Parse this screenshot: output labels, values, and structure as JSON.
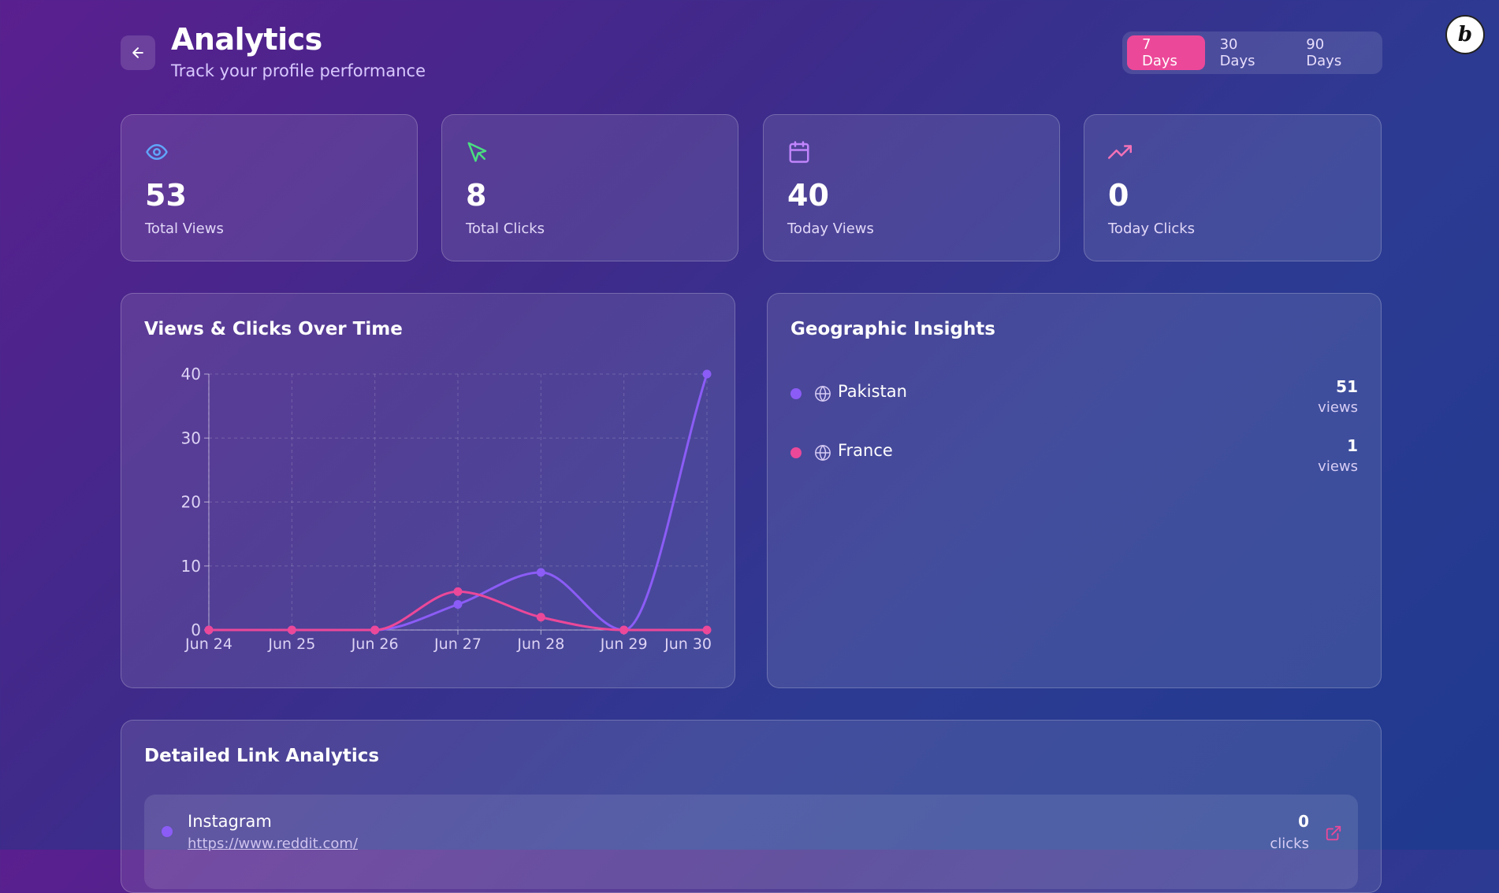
{
  "header": {
    "title": "Analytics",
    "subtitle": "Track your profile performance",
    "ranges": [
      {
        "label": "7 Days",
        "active": true
      },
      {
        "label": "30 Days",
        "active": false
      },
      {
        "label": "90 Days",
        "active": false
      }
    ],
    "badge_letter": "b"
  },
  "stats": [
    {
      "icon": "eye-icon",
      "value": "53",
      "label": "Total Views",
      "color": "#60a5fa"
    },
    {
      "icon": "cursor-icon",
      "value": "8",
      "label": "Total Clicks",
      "color": "#4ade80"
    },
    {
      "icon": "calendar-icon",
      "value": "40",
      "label": "Today Views",
      "color": "#c084fc"
    },
    {
      "icon": "trending-up-icon",
      "value": "0",
      "label": "Today Clicks",
      "color": "#f472b6"
    }
  ],
  "chart": {
    "title": "Views & Clicks Over Time"
  },
  "chart_data": {
    "type": "line",
    "categories": [
      "Jun 24",
      "Jun 25",
      "Jun 26",
      "Jun 27",
      "Jun 28",
      "Jun 29",
      "Jun 30"
    ],
    "series": [
      {
        "values": [
          0,
          0,
          0,
          4,
          9,
          0,
          40
        ],
        "color": "#8b5cf6"
      },
      {
        "values": [
          0,
          0,
          0,
          6,
          2,
          0,
          0
        ],
        "color": "#ec4899"
      }
    ],
    "yticks": [
      0,
      10,
      20,
      30,
      40
    ],
    "ylim": [
      0,
      40
    ],
    "grid": true
  },
  "geo": {
    "title": "Geographic Insights",
    "items": [
      {
        "country": "Pakistan",
        "count": "51",
        "unit": "views",
        "color": "#8b5cf6"
      },
      {
        "country": "France",
        "count": "1",
        "unit": "views",
        "color": "#ec4899"
      }
    ]
  },
  "links": {
    "title": "Detailed Link Analytics",
    "items": [
      {
        "name": "Instagram",
        "url": "https://www.reddit.com/",
        "count": "0",
        "unit": "clicks"
      }
    ]
  }
}
